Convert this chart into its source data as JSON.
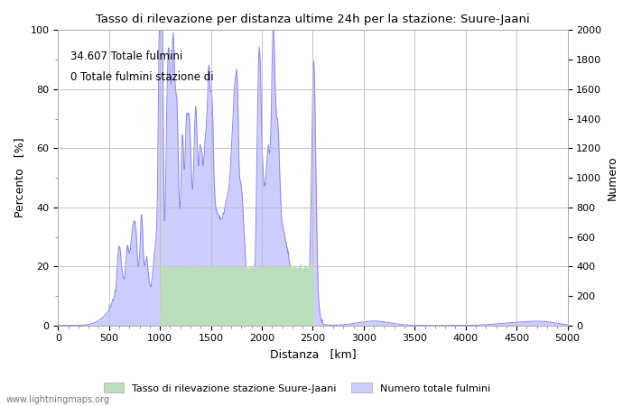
{
  "title": "Tasso di rilevazione per distanza ultime 24h per la stazione: Suure-Jaani",
  "xlabel": "Distanza   [km]",
  "ylabel_left": "Percento   [%]",
  "ylabel_right": "Numero",
  "annotation_line1": "34.607 Totale fulmini",
  "annotation_line2": "0 Totale fulmini stazione di",
  "xlim": [
    0,
    5000
  ],
  "ylim_left": [
    0,
    100
  ],
  "ylim_right": [
    0,
    2000
  ],
  "xticks": [
    0,
    500,
    1000,
    1500,
    2000,
    2500,
    3000,
    3500,
    4000,
    4500,
    5000
  ],
  "yticks_left": [
    0,
    20,
    40,
    60,
    80,
    100
  ],
  "yticks_right": [
    0,
    200,
    400,
    600,
    800,
    1000,
    1200,
    1400,
    1600,
    1800,
    2000
  ],
  "legend_label_green": "Tasso di rilevazione stazione Suure-Jaani",
  "legend_label_blue": "Numero totale fulmini",
  "watermark": "www.lightningmaps.org",
  "fill_green_color": "#bbddbb",
  "fill_blue_color": "#ccccff",
  "line_color": "#8888ee",
  "background_color": "#ffffff",
  "grid_color": "#bbbbbb",
  "figsize": [
    7.0,
    4.5
  ],
  "dpi": 100
}
